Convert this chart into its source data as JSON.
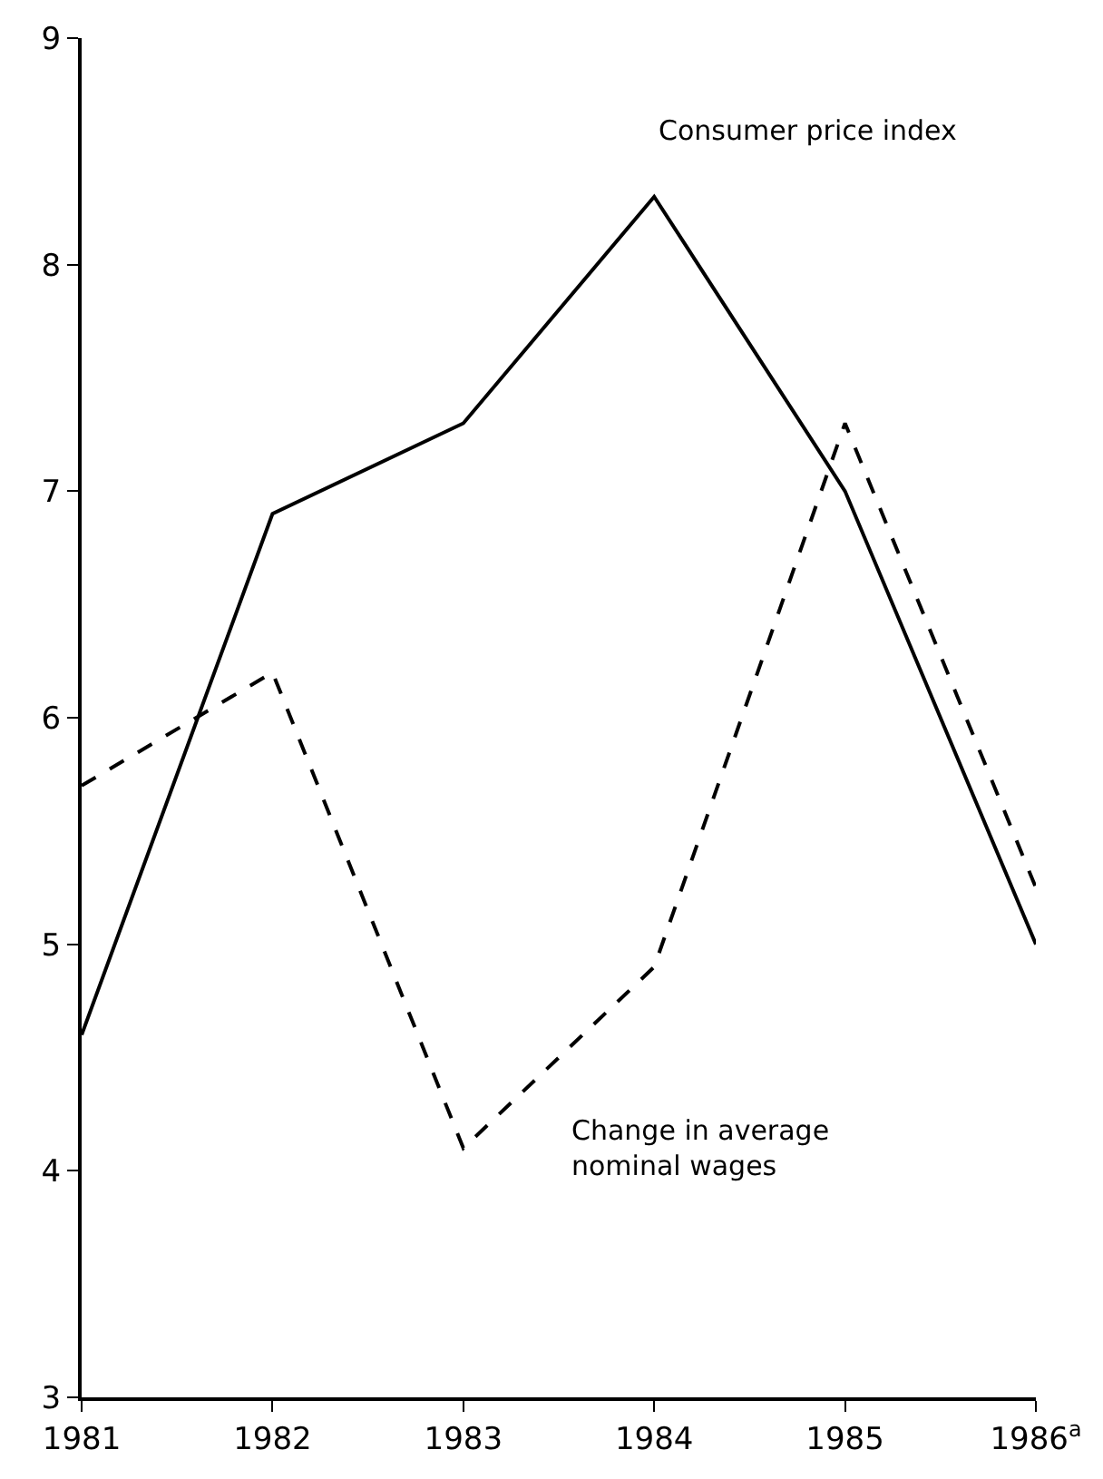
{
  "chart_data": {
    "type": "line",
    "categories": [
      "1981",
      "1982",
      "1983",
      "1984",
      "1985",
      "1986$^{a}$"
    ],
    "series": [
      {
        "name": "Consumer price index",
        "color": "#000000",
        "line_style": "solid",
        "values": [
          4.6,
          6.9,
          7.3,
          8.3,
          7.0,
          5.0
        ]
      },
      {
        "name": "Change in average nominal wages",
        "color": "#000000",
        "line_style": "dashed",
        "values": [
          5.7,
          6.2,
          4.1,
          4.9,
          7.3,
          5.25
        ]
      }
    ],
    "ylim": [
      3,
      9
    ],
    "yticks": [
      3,
      4,
      5,
      6,
      7,
      8,
      9
    ],
    "legend": false,
    "marker": "none"
  }
}
